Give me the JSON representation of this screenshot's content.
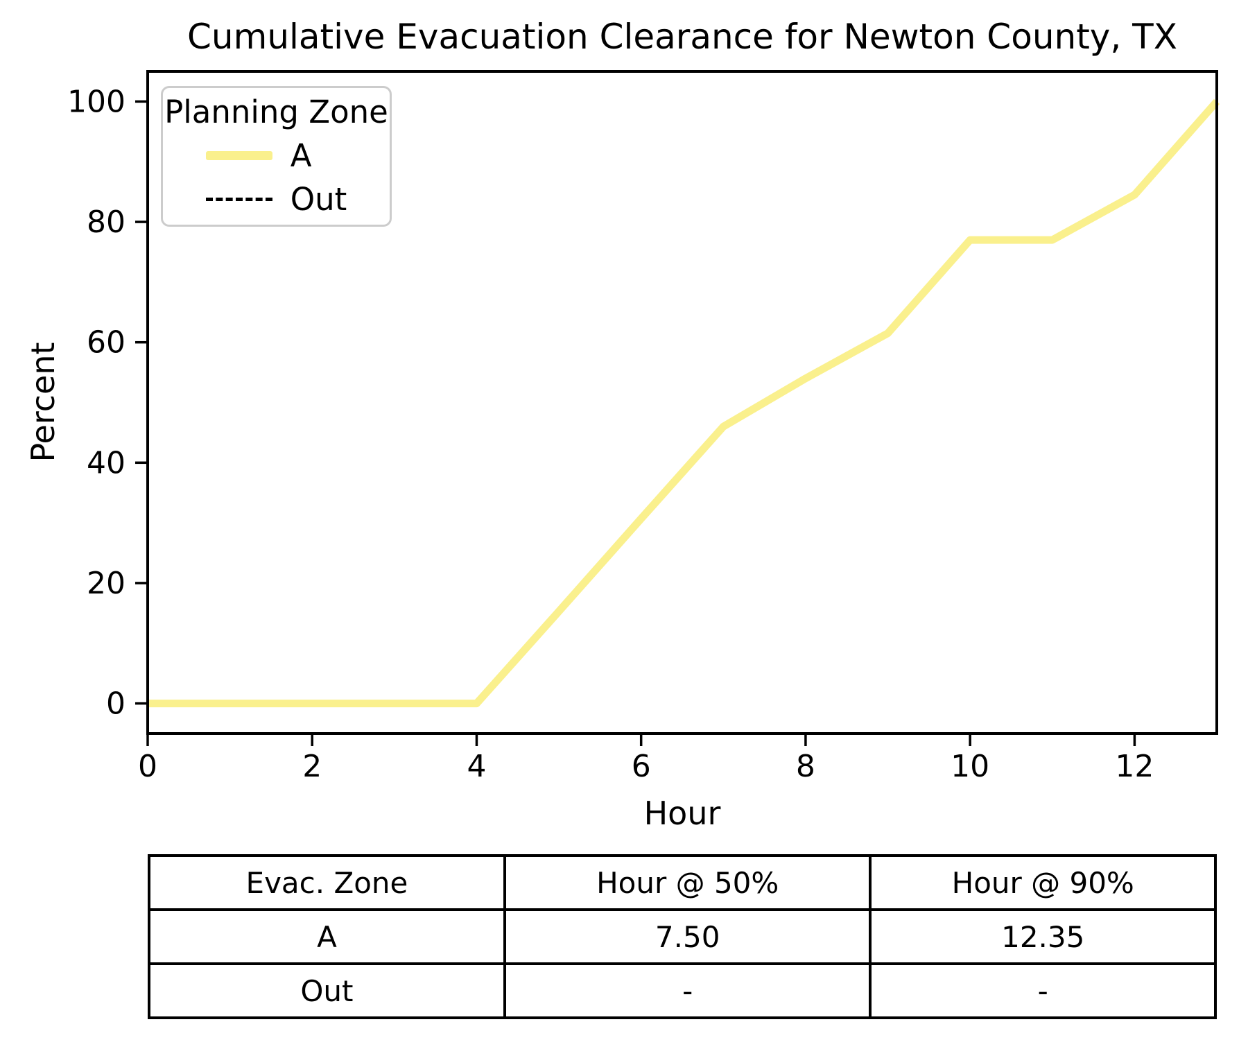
{
  "chart_data": {
    "type": "line",
    "title": "Cumulative Evacuation Clearance for Newton County, TX",
    "xlabel": "Hour",
    "ylabel": "Percent",
    "xlim": [
      0,
      13
    ],
    "ylim": [
      -5,
      105
    ],
    "x_ticks": [
      0,
      2,
      4,
      6,
      8,
      10,
      12
    ],
    "y_ticks": [
      0,
      20,
      40,
      60,
      80,
      100
    ],
    "grid": false,
    "legend": {
      "title": "Planning Zone",
      "position": "upper-left",
      "entries": [
        {
          "label": "A",
          "style": "solid",
          "color": "#FAF08D"
        },
        {
          "label": "Out",
          "style": "dashed",
          "color": "#000000"
        }
      ]
    },
    "x": [
      0,
      1,
      2,
      3,
      4,
      5,
      6,
      7,
      8,
      9,
      10,
      11,
      12,
      13
    ],
    "series": [
      {
        "name": "A",
        "style": "solid",
        "color": "#FAF08D",
        "line_width": 11,
        "values": [
          0,
          0,
          0,
          0,
          0,
          15.3,
          30.7,
          46,
          54,
          61.5,
          77,
          77,
          84.5,
          100
        ]
      },
      {
        "name": "Out",
        "style": "dashed",
        "color": "#000000",
        "line_width": 4,
        "values": []
      }
    ]
  },
  "table": {
    "headers": [
      "Evac. Zone",
      "Hour @ 50%",
      "Hour @ 90%"
    ],
    "rows": [
      [
        "A",
        "7.50",
        "12.35"
      ],
      [
        "Out",
        "-",
        "-"
      ]
    ]
  }
}
